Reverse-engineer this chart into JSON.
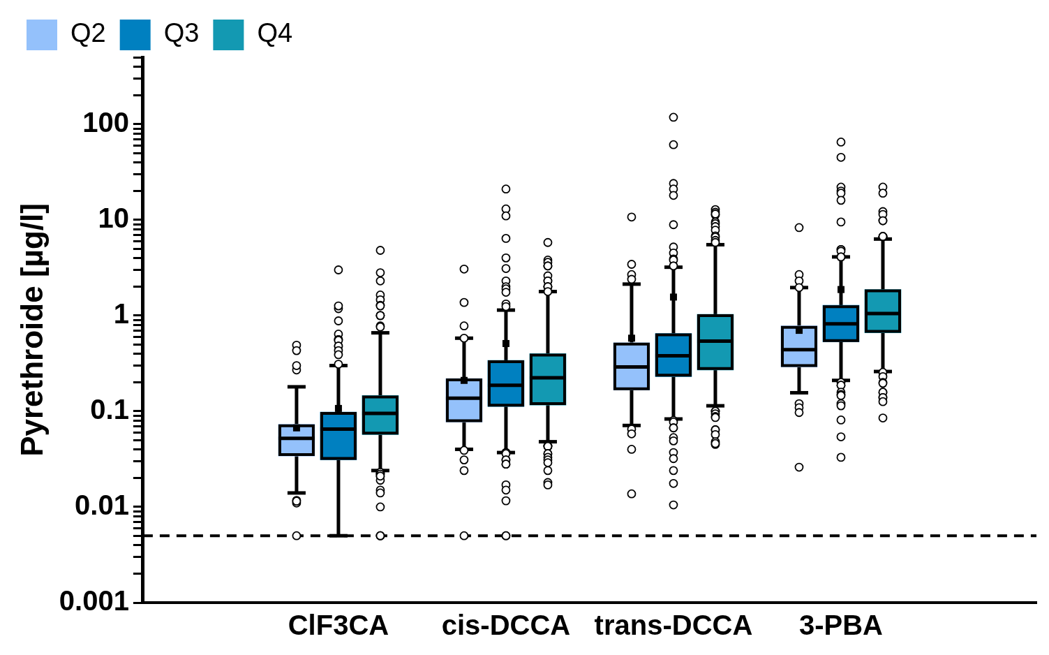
{
  "chart_data": {
    "type": "box",
    "ylabel": "Pyrethroide [µg/l]",
    "categories": [
      "ClF3CA",
      "cis-DCCA",
      "trans-DCCA",
      "3-PBA"
    ],
    "log": "y",
    "ylim": [
      0.001,
      500
    ],
    "yticks": [
      0.001,
      {
        "value": 0.002,
        "label": null
      },
      {
        "value": 0.003,
        "label": null
      },
      {
        "value": 0.004,
        "label": null
      },
      {
        "value": 0.005,
        "label": null
      },
      {
        "value": 0.006,
        "label": null
      },
      {
        "value": 0.007,
        "label": null
      },
      {
        "value": 0.008,
        "label": null
      },
      {
        "value": 0.009,
        "label": null
      },
      0.01,
      {
        "value": 0.02,
        "label": null
      },
      {
        "value": 0.03,
        "label": null
      },
      {
        "value": 0.04,
        "label": null
      },
      {
        "value": 0.05,
        "label": null
      },
      {
        "value": 0.06,
        "label": null
      },
      {
        "value": 0.07,
        "label": null
      },
      {
        "value": 0.08,
        "label": null
      },
      {
        "value": 0.09,
        "label": null
      },
      0.1,
      {
        "value": 0.2,
        "label": null
      },
      {
        "value": 0.3,
        "label": null
      },
      {
        "value": 0.4,
        "label": null
      },
      {
        "value": 0.5,
        "label": null
      },
      {
        "value": 0.6,
        "label": null
      },
      {
        "value": 0.7,
        "label": null
      },
      {
        "value": 0.8,
        "label": null
      },
      {
        "value": 0.9,
        "label": null
      },
      1,
      {
        "value": 2,
        "label": null
      },
      {
        "value": 3,
        "label": null
      },
      {
        "value": 4,
        "label": null
      },
      {
        "value": 5,
        "label": null
      },
      {
        "value": 6,
        "label": null
      },
      {
        "value": 7,
        "label": null
      },
      {
        "value": 8,
        "label": null
      },
      {
        "value": 9,
        "label": null
      },
      10,
      {
        "value": 20,
        "label": null
      },
      {
        "value": 30,
        "label": null
      },
      {
        "value": 40,
        "label": null
      },
      {
        "value": 50,
        "label": null
      },
      {
        "value": 60,
        "label": null
      },
      {
        "value": 70,
        "label": null
      },
      {
        "value": 80,
        "label": null
      },
      {
        "value": 90,
        "label": null
      },
      100,
      {
        "value": 200,
        "label": null
      },
      {
        "value": 300,
        "label": null
      },
      {
        "value": 400,
        "label": null
      },
      {
        "value": 500,
        "label": null
      }
    ],
    "grid": false,
    "legend": "top left",
    "marker": "circle",
    "ref_lines": [
      {
        "axis": "y",
        "value": 0.005,
        "color": "#000000",
        "line_style": "dashed"
      }
    ],
    "series": [
      {
        "name": "Q2",
        "color": "#94c1fb",
        "boxes": [
          {
            "low": 0.014,
            "q1": 0.034,
            "median": 0.052,
            "q3": 0.073,
            "high": 0.18,
            "mean": 0.067,
            "outliers": [
              0.49,
              0.43,
              0.27,
              0.3,
              0.0117,
              0.011,
              0.0115,
              0.005
            ]
          },
          {
            "low": 0.04,
            "q1": 0.077,
            "median": 0.137,
            "q3": 0.22,
            "high": 0.58,
            "mean": 0.21,
            "outliers": [
              3.06,
              1.37,
              0.78,
              0.58,
              0.039,
              0.031,
              0.024,
              0.005
            ]
          },
          {
            "low": 0.071,
            "q1": 0.166,
            "median": 0.29,
            "q3": 0.52,
            "high": 2.13,
            "mean": 0.58,
            "outliers": [
              10.7,
              3.43,
              2.68,
              2.39,
              0.065,
              0.058,
              0.04,
              0.0137
            ]
          },
          {
            "low": 0.156,
            "q1": 0.29,
            "median": 0.44,
            "q3": 0.78,
            "high": 1.96,
            "mean": 0.7,
            "outliers": [
              8.3,
              2.68,
              2.3,
              1.96,
              0.12,
              0.109,
              0.097,
              0.026
            ]
          }
        ]
      },
      {
        "name": "Q3",
        "color": "#0080c0",
        "boxes": [
          {
            "low": 0.005,
            "q1": 0.031,
            "median": 0.065,
            "q3": 0.098,
            "high": 0.3,
            "mean": 0.107,
            "outliers": [
              3,
              1.18,
              1.26,
              0.88,
              0.64,
              0.56,
              0.56,
              0.55,
              0.48,
              0.48,
              0.43,
              0.39,
              0.31
            ]
          },
          {
            "low": 0.037,
            "q1": 0.112,
            "median": 0.187,
            "q3": 0.34,
            "high": 1.14,
            "mean": 0.51,
            "outliers": [
              21,
              13,
              11,
              6.4,
              4,
              3.1,
              2.3,
              2,
              1.9,
              1.75,
              1.32,
              1.24,
              0.037,
              0.037,
              0.036,
              0.031,
              0.031,
              0.028,
              0.028,
              0.017,
              0.015,
              0.0116,
              0.005,
              0.005
            ]
          },
          {
            "low": 0.083,
            "q1": 0.23,
            "median": 0.38,
            "q3": 0.65,
            "high": 3.2,
            "mean": 1.56,
            "outliers": [
              118,
              61,
              24,
              21,
              18,
              8.9,
              5.2,
              4.5,
              3.9,
              3.8,
              3.3,
              3.3,
              0.08,
              0.077,
              0.067,
              0.067,
              0.053,
              0.049,
              0.037,
              0.032,
              0.024,
              0.0176,
              0.0105
            ]
          },
          {
            "low": 0.21,
            "q1": 0.53,
            "median": 0.82,
            "q3": 1.28,
            "high": 4.1,
            "mean": 1.87,
            "outliers": [
              65,
              45,
              22,
              20,
              19,
              16,
              9.5,
              4.9,
              4.9,
              4.7,
              4.1,
              4.1,
              0.2,
              0.187,
              0.187,
              0.158,
              0.15,
              0.146,
              0.12,
              0.114,
              0.081,
              0.054,
              0.033
            ]
          }
        ]
      },
      {
        "name": "Q4",
        "color": "#1399b2",
        "boxes": [
          {
            "low": 0.024,
            "q1": 0.057,
            "median": 0.095,
            "q3": 0.146,
            "high": 0.66,
            "outliers": [
              4.8,
              2.8,
              2.3,
              1.64,
              1.46,
              1.28,
              1.26,
              1,
              1,
              1,
              0.78,
              0.76,
              0.023,
              0.022,
              0.022,
              0.021,
              0.019,
              0.021,
              0.015,
              0.014,
              0.01,
              0.005,
              0.005,
              0.005
            ]
          },
          {
            "low": 0.048,
            "q1": 0.116,
            "median": 0.224,
            "q3": 0.4,
            "high": 1.78,
            "outliers": [
              5.8,
              3.8,
              3.6,
              3.3,
              3.3,
              3.3,
              2.6,
              2.3,
              2.3,
              2,
              2,
              2,
              1.78,
              0.043,
              0.043,
              0.043,
              0.036,
              0.036,
              0.033,
              0.031,
              0.029,
              0.024,
              0.018,
              0.017
            ]
          },
          {
            "low": 0.114,
            "q1": 0.27,
            "median": 0.54,
            "q3": 1.03,
            "high": 5.5,
            "outliers": [
              12.8,
              12,
              11.2,
              11.5,
              9.5,
              9.1,
              8.5,
              7.8,
              6.8,
              6.6,
              6.1,
              5.8,
              0.1,
              0.1,
              0.094,
              0.088,
              0.086,
              0.064,
              0.064,
              0.057,
              0.048,
              0.045,
              0.046
            ]
          },
          {
            "low": 0.26,
            "q1": 0.66,
            "median": 1.05,
            "q3": 1.87,
            "high": 6.3,
            "outliers": [
              22,
              19,
              12.2,
              11.4,
              9.8,
              9.8,
              6.7,
              6.7,
              6.7,
              6.7,
              6.7,
              0.255,
              0.23,
              0.2,
              0.196,
              0.158,
              0.158,
              0.139,
              0.139,
              0.126,
              0.085
            ]
          }
        ]
      }
    ]
  }
}
